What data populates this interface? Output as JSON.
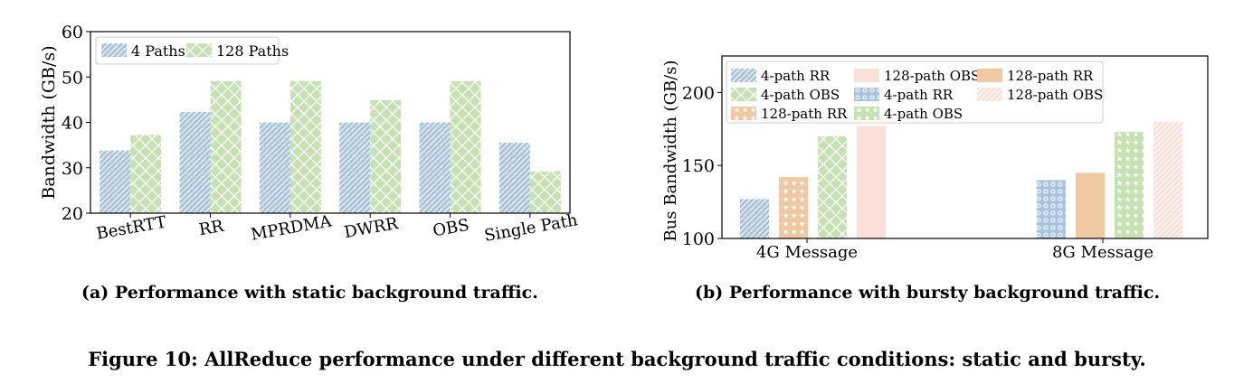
{
  "colors": {
    "blue": "#a9c4e0",
    "blue_stroke": "#6f98c4",
    "green": "#c6e2b3",
    "orange": "#f0c9a3",
    "pink": "#fbe0da"
  },
  "captions": {
    "a_label": "(a)",
    "a_text": "Performance with static background traffic.",
    "b_label": "(b)",
    "b_text": "Performance with bursty background traffic.",
    "figure": "Figure 10: AllReduce performance under different background traffic conditions: static and bursty."
  },
  "chart_data": [
    {
      "type": "bar",
      "title": "",
      "xlabel": "",
      "ylabel": "Bandwidth (GB/s)",
      "ylim": [
        20,
        60
      ],
      "yticks": [
        20,
        30,
        40,
        50,
        60
      ],
      "grid": false,
      "legend_position": "top-left",
      "categories": [
        "BestRTT",
        "RR",
        "MPRDMA",
        "DWRR",
        "OBS",
        "Single Path"
      ],
      "series": [
        {
          "name": "4 Paths",
          "values": [
            33.8,
            42.3,
            40.0,
            40.0,
            40.0,
            35.5
          ]
        },
        {
          "name": "128 Paths",
          "values": [
            37.2,
            49.1,
            49.1,
            44.9,
            49.1,
            29.2
          ]
        }
      ]
    },
    {
      "type": "bar",
      "title": "",
      "xlabel": "",
      "ylabel": "Bus Bandwidth (GB/s)",
      "ylim": [
        100,
        225
      ],
      "yticks": [
        100,
        150,
        200
      ],
      "grid": false,
      "legend_position": "top",
      "categories": [
        "4G Message",
        "8G Message"
      ],
      "bars": [
        {
          "series": "4-path RR",
          "category": "4G Message",
          "value": 127
        },
        {
          "series": "128-path RR",
          "category": "4G Message",
          "value": 142
        },
        {
          "series": "4-path OBS",
          "category": "4G Message",
          "value": 170
        },
        {
          "series": "128-path OBS",
          "category": "4G Message",
          "value": 177
        },
        {
          "series": "4-path RR",
          "category": "8G Message",
          "value": 140
        },
        {
          "series": "128-path RR",
          "category": "8G Message",
          "value": 145
        },
        {
          "series": "4-path OBS",
          "category": "8G Message",
          "value": 173
        },
        {
          "series": "128-path OBS",
          "category": "8G Message",
          "value": 180
        }
      ],
      "legend": [
        {
          "name": "4-path RR",
          "style": "blue-hatch"
        },
        {
          "name": "4-path OBS",
          "style": "green-cross"
        },
        {
          "name": "128-path RR",
          "style": "orange-star"
        },
        {
          "name": "128-path OBS",
          "style": "pink-plain"
        },
        {
          "name": "4-path RR",
          "style": "blue-dots"
        },
        {
          "name": "4-path OBS",
          "style": "green-star"
        },
        {
          "name": "128-path RR",
          "style": "orange-plain"
        },
        {
          "name": "128-path OBS",
          "style": "pink-hatch"
        }
      ]
    }
  ]
}
